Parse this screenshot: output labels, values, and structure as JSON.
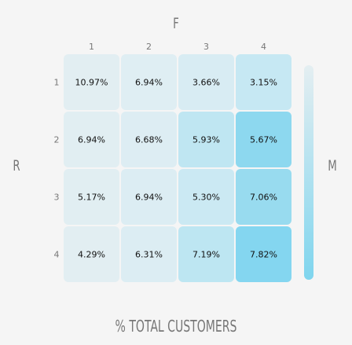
{
  "chart_data": {
    "type": "heatmap",
    "title": "% TOTAL CUSTOMERS",
    "column_axis_label": "F",
    "row_axis_label": "R",
    "legend_label": "M",
    "columns": [
      "1",
      "2",
      "3",
      "4"
    ],
    "rows": [
      "1",
      "2",
      "3",
      "4"
    ],
    "values": [
      [
        10.97,
        6.94,
        3.66,
        3.15
      ],
      [
        6.94,
        6.68,
        5.93,
        5.67
      ],
      [
        5.17,
        6.94,
        5.3,
        7.06
      ],
      [
        4.29,
        6.31,
        7.19,
        7.82
      ]
    ],
    "cell_labels": [
      [
        "10.97%",
        "6.94%",
        "3.66%",
        "3.15%"
      ],
      [
        "6.94%",
        "6.68%",
        "5.93%",
        "5.67%"
      ],
      [
        "5.17%",
        "6.94%",
        "5.30%",
        "7.06%"
      ],
      [
        "4.29%",
        "6.31%",
        "7.19%",
        "7.82%"
      ]
    ],
    "cell_colors": [
      [
        "#e2eef2",
        "#dfeef3",
        "#d8ecf3",
        "#c6e8f3"
      ],
      [
        "#e1eef2",
        "#ddedf3",
        "#bfe6f2",
        "#8dd8ef"
      ],
      [
        "#e1eef2",
        "#dcedf3",
        "#cbe9f3",
        "#98dbef"
      ],
      [
        "#e2eef2",
        "#dcedf3",
        "#bde6f2",
        "#84d6f0"
      ]
    ],
    "legend_gradient": [
      "#e4eef1",
      "#7fd5ee"
    ]
  }
}
